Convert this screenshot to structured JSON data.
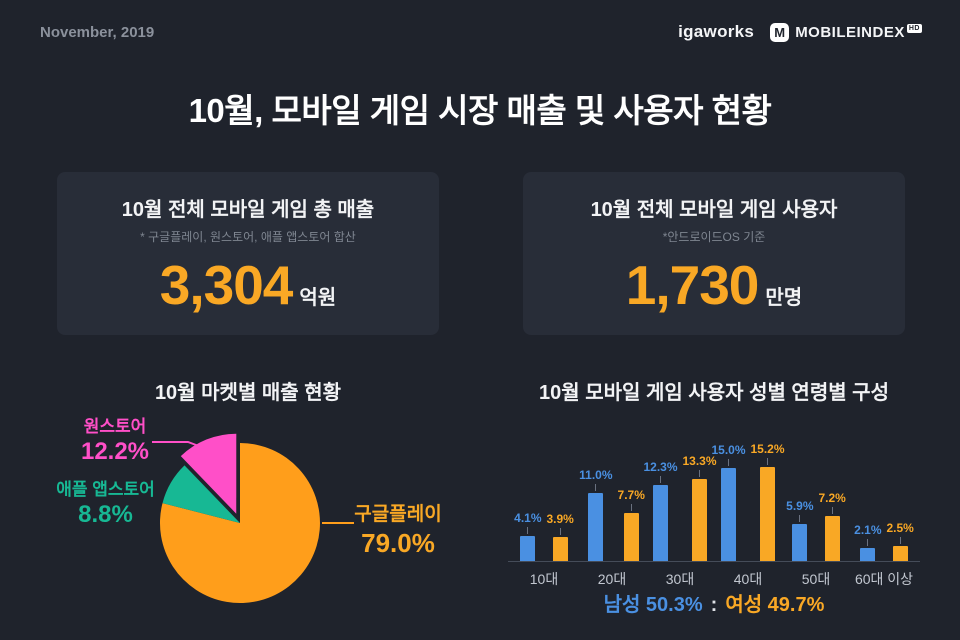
{
  "header": {
    "date": "November, 2019",
    "brand_left": "igaworks",
    "brand_m": "M",
    "brand_right": "MOBILEINDEX",
    "brand_hd": "HD"
  },
  "title": "10월, 모바일 게임 시장 매출 및 사용자 현황",
  "cards": [
    {
      "title": "10월 전체 모바일 게임 총 매출",
      "subtitle": "* 구글플레이, 원스토어, 애플 앱스토어 합산",
      "value": "3,304",
      "unit": "억원"
    },
    {
      "title": "10월 전체 모바일 게임 사용자",
      "subtitle": "*안드로이드OS 기준",
      "value": "1,730",
      "unit": "만명"
    }
  ],
  "colors": {
    "background": "#1f232c",
    "card": "#282d38",
    "accent_orange": "#f9a825",
    "pie_orange": "#ff9e1b",
    "pink": "#ff4fc8",
    "teal": "#17b894",
    "blue": "#4a90e2"
  },
  "chart_data": [
    {
      "type": "pie",
      "title": "10월 마켓별 매출 현황",
      "slices": [
        {
          "label": "구글플레이",
          "value": 79.0,
          "display": "79.0%",
          "color": "#ff9e1b",
          "offset": 0
        },
        {
          "label": "애플 앱스토어",
          "value": 8.8,
          "display": "8.8%",
          "color": "#17b894",
          "offset": 0
        },
        {
          "label": "원스토어",
          "value": 12.2,
          "display": "12.2%",
          "color": "#ff4fc8",
          "offset": 10
        }
      ],
      "legend_position": "around"
    },
    {
      "type": "bar",
      "title": "10월 모바일 게임 사용자 성별 연령별 구성",
      "categories": [
        "10대",
        "20대",
        "30대",
        "40대",
        "50대",
        "60대 이상"
      ],
      "series": [
        {
          "name": "남성",
          "color": "#4a90e2",
          "values": [
            4.1,
            11.0,
            12.3,
            15.0,
            5.9,
            2.1
          ]
        },
        {
          "name": "여성",
          "color": "#f9a825",
          "values": [
            3.9,
            7.7,
            13.3,
            15.2,
            7.2,
            2.5
          ]
        }
      ],
      "ylim": [
        0,
        16
      ],
      "value_suffix": "%",
      "grid": false,
      "footer": {
        "male": "남성 50.3%",
        "separator": ":",
        "female": "여성 49.7%"
      }
    }
  ]
}
